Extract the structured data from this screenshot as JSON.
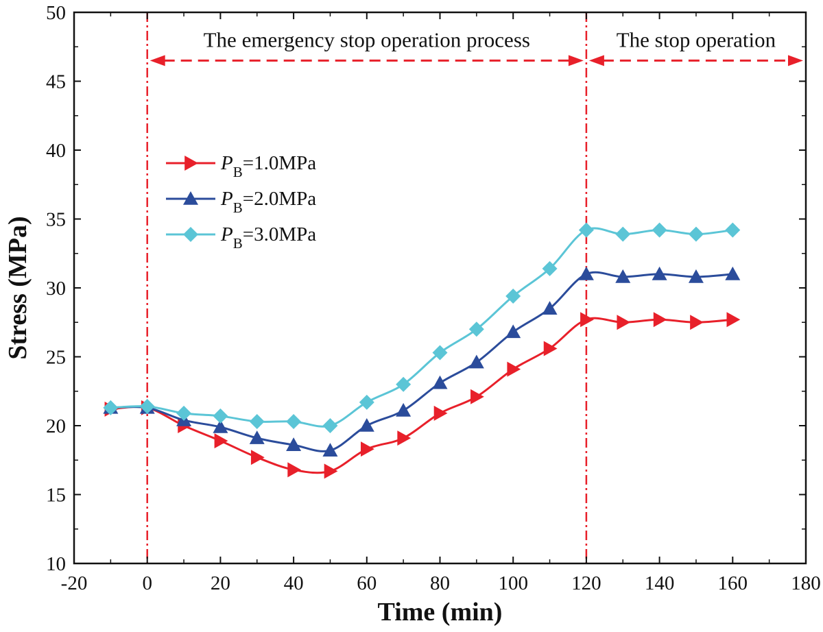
{
  "chart_data": {
    "type": "line",
    "title": "",
    "xlabel": "Time (min)",
    "ylabel": "Stress (MPa)",
    "xlim": [
      -20,
      180
    ],
    "ylim": [
      10,
      50
    ],
    "xticks": [
      -20,
      0,
      20,
      40,
      60,
      80,
      100,
      120,
      140,
      160,
      180
    ],
    "yticks": [
      10,
      15,
      20,
      25,
      30,
      35,
      40,
      45,
      50
    ],
    "grid": false,
    "legend_position": "upper-left",
    "x": [
      -10,
      0,
      10,
      20,
      30,
      40,
      50,
      60,
      70,
      80,
      90,
      100,
      110,
      120,
      130,
      140,
      150,
      160
    ],
    "series": [
      {
        "name": "PB=1.0MPa",
        "symbol": "P",
        "subscript": "B",
        "value_text": "=1.0MPa",
        "color": "#e8202a",
        "marker": "triangle-right",
        "values": [
          21.2,
          21.3,
          20.0,
          18.9,
          17.7,
          16.8,
          16.7,
          18.3,
          19.1,
          20.9,
          22.1,
          24.1,
          25.6,
          27.7,
          27.5,
          27.7,
          27.5,
          27.7
        ]
      },
      {
        "name": "PB=2.0MPa",
        "symbol": "P",
        "subscript": "B",
        "value_text": "=2.0MPa",
        "color": "#2b4c9b",
        "marker": "triangle-up",
        "values": [
          21.3,
          21.3,
          20.4,
          19.9,
          19.1,
          18.6,
          18.2,
          20.0,
          21.1,
          23.1,
          24.6,
          26.8,
          28.5,
          31.0,
          30.8,
          31.0,
          30.8,
          31.0
        ]
      },
      {
        "name": "PB=3.0MPa",
        "symbol": "P",
        "subscript": "B",
        "value_text": "=3.0MPa",
        "color": "#5bc5d6",
        "marker": "diamond",
        "values": [
          21.3,
          21.4,
          20.9,
          20.7,
          20.3,
          20.3,
          20.0,
          21.7,
          23.0,
          25.3,
          27.0,
          29.4,
          31.4,
          34.2,
          33.9,
          34.2,
          33.9,
          34.2
        ]
      }
    ],
    "annotations": [
      {
        "text": "The emergency stop operation process",
        "from_x": 0,
        "to_x": 120,
        "y": 46.5
      },
      {
        "text": "The stop operation",
        "from_x": 120,
        "to_x": 180,
        "y": 46.5
      }
    ],
    "vertical_lines": [
      0,
      120
    ],
    "annotation_color": "#e8202a"
  }
}
